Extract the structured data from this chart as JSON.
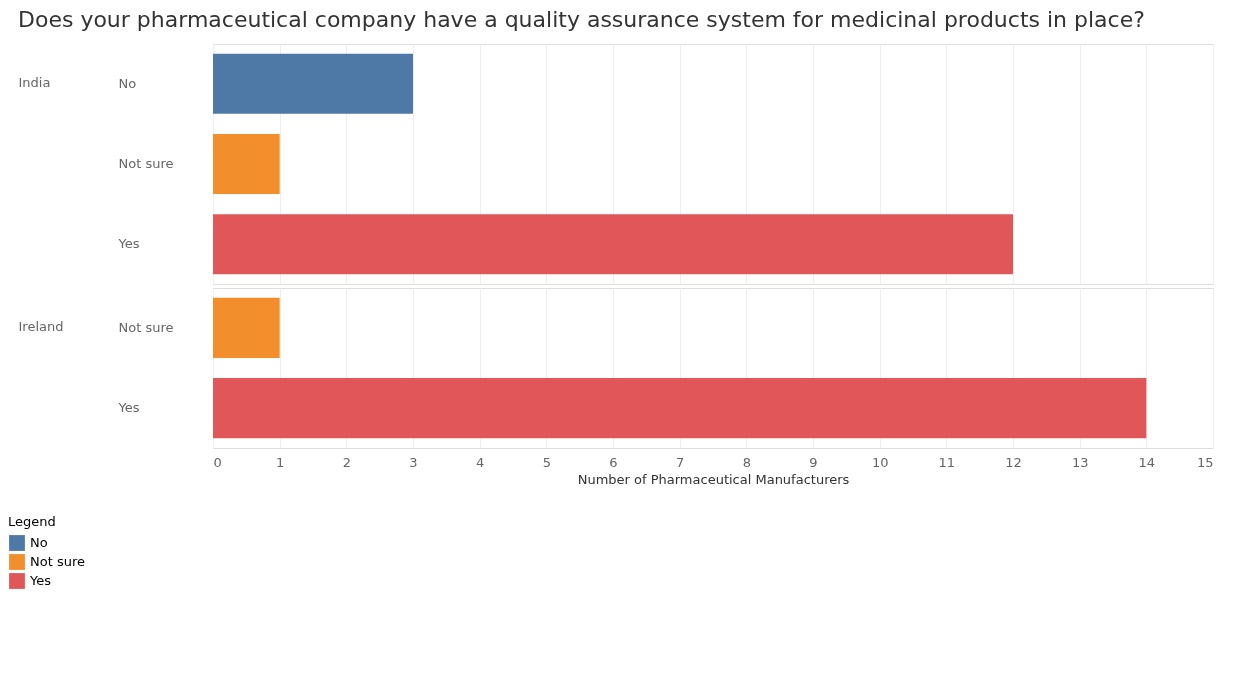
{
  "chart_data": [
    {
      "type": "bar",
      "orientation": "horizontal",
      "title": "Does your pharmaceutical company have a quality assurance system for medicinal products in place?",
      "ylabel": "India",
      "categories": [
        "No",
        "Not sure",
        "Yes"
      ],
      "series": [
        {
          "name": "No",
          "color": "#4e79a7",
          "values": [
            3,
            null,
            null
          ]
        },
        {
          "name": "Not sure",
          "color": "#f28e2b",
          "values": [
            null,
            1,
            null
          ]
        },
        {
          "name": "Yes",
          "color": "#e15759",
          "values": [
            null,
            null,
            12
          ]
        }
      ],
      "xlim": [
        0,
        15
      ],
      "xticks": [
        0,
        1,
        2,
        3,
        4,
        5,
        6,
        7,
        8,
        9,
        10,
        11,
        12,
        13,
        14,
        15
      ],
      "grid": "x",
      "tick_labels": "y",
      "legend": "bottom left",
      "legend_title": "Legend"
    },
    {
      "type": "bar",
      "orientation": "horizontal",
      "ylabel": "Ireland",
      "xlabel": "Number of Pharmaceutical Manufacturers",
      "categories": [
        "Not sure",
        "Yes"
      ],
      "series": [
        {
          "name": "Not sure",
          "color": "#f28e2b",
          "values": [
            1,
            null
          ]
        },
        {
          "name": "Yes",
          "color": "#e15759",
          "values": [
            null,
            14
          ]
        }
      ],
      "xlim": [
        0,
        15
      ],
      "xticks": [
        0,
        1,
        2,
        3,
        4,
        5,
        6,
        7,
        8,
        9,
        10,
        11,
        12,
        13,
        14,
        15
      ],
      "grid": "x"
    }
  ]
}
